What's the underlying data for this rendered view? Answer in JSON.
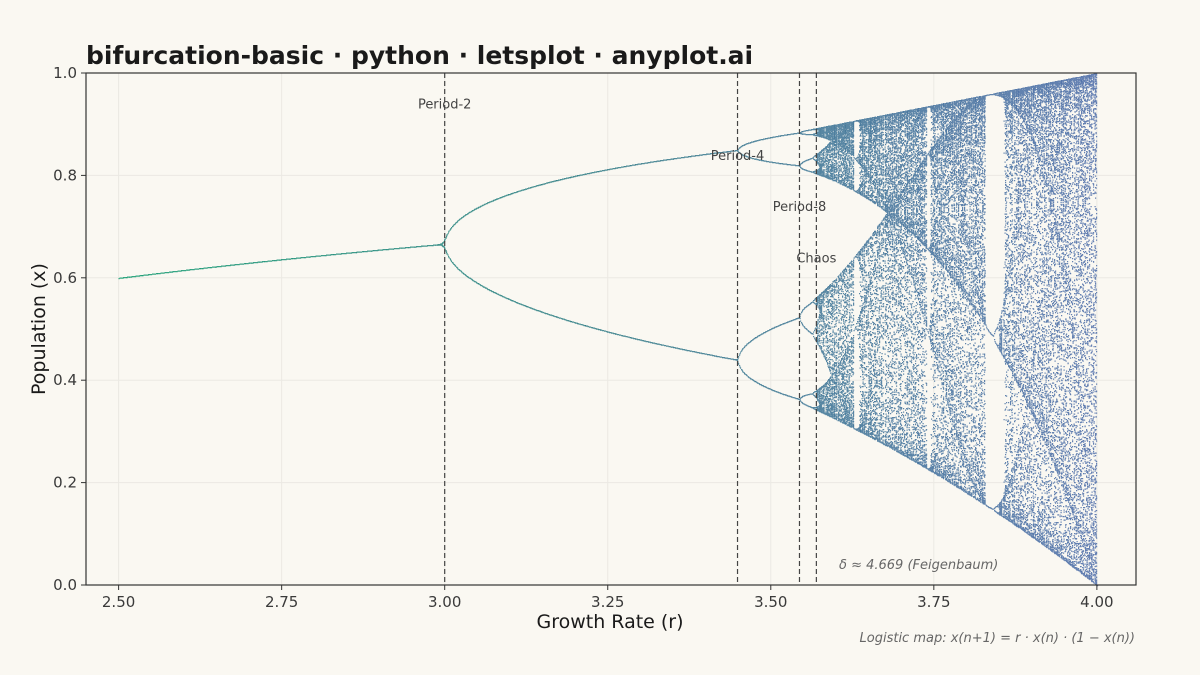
{
  "chart_data": {
    "type": "scatter",
    "title": "bifurcation-basic · python · letsplot · anyplot.ai",
    "xlabel": "Growth Rate (r)",
    "ylabel": "Population (x)",
    "xlim": [
      2.45,
      4.06
    ],
    "ylim": [
      0.0,
      1.0
    ],
    "x_ticks": [
      "2.50",
      "2.75",
      "3.00",
      "3.25",
      "3.50",
      "3.75",
      "4.00"
    ],
    "y_ticks": [
      "0.0",
      "0.2",
      "0.4",
      "0.6",
      "0.8",
      "1.0"
    ],
    "grid": true,
    "legend": "none",
    "series": [
      {
        "r_range": [
          2.5,
          4.0
        ],
        "equation": "x(n+1) = r · x(n) · (1 − x(n))"
      }
    ],
    "color_gradient": [
      "#0E9A6E",
      "#2F7A86",
      "#4A6BA8"
    ],
    "annotations": [
      {
        "label": "Period-2",
        "x": 3.0,
        "y": 0.94
      },
      {
        "label": "Period-4",
        "x": 3.449,
        "y": 0.84
      },
      {
        "label": "Period-8",
        "x": 3.544,
        "y": 0.74
      },
      {
        "label": "Chaos",
        "x": 3.5699,
        "y": 0.64
      }
    ],
    "note": "δ ≈ 4.669 (Feigenbaum)",
    "caption": "Logistic map: x(n+1) = r · x(n) · (1 − x(n))"
  }
}
